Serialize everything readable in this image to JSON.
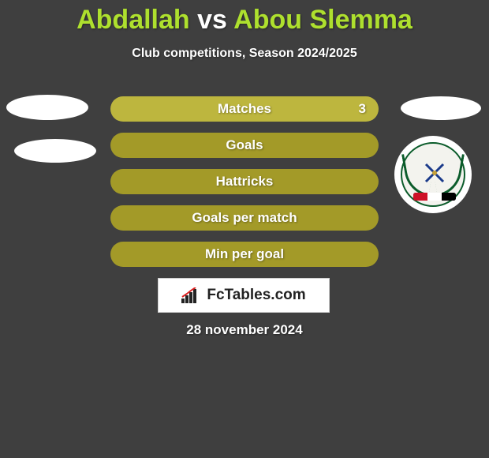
{
  "title": {
    "player1": "Abdallah",
    "vs": "vs",
    "player2": "Abou Slemma",
    "player1_color": "#aee02e",
    "vs_color": "#ffffff",
    "player2_color": "#aee02e"
  },
  "subtitle": "Club competitions, Season 2024/2025",
  "background_color": "#3f3f3f",
  "stats": {
    "bar_color_highlight": "#bdb63e",
    "bar_color_normal": "#a39a28",
    "text_color": "#ffffff",
    "rows": [
      {
        "label": "Matches",
        "left": "",
        "right": "3",
        "highlight": true
      },
      {
        "label": "Goals",
        "left": "",
        "right": "",
        "highlight": false
      },
      {
        "label": "Hattricks",
        "left": "",
        "right": "",
        "highlight": false
      },
      {
        "label": "Goals per match",
        "left": "",
        "right": "",
        "highlight": false
      },
      {
        "label": "Min per goal",
        "left": "",
        "right": "",
        "highlight": false
      }
    ]
  },
  "badges": {
    "left_oval_color": "#ffffff",
    "right_oval_color": "#ffffff",
    "crest": {
      "wreath_color": "#0b5c2b",
      "flag_colors": [
        "#ce1126",
        "#ffffff",
        "#000000"
      ]
    }
  },
  "brand": {
    "text": "FcTables.com",
    "box_bg": "#ffffff",
    "text_color": "#222222"
  },
  "date": "28 november 2024"
}
